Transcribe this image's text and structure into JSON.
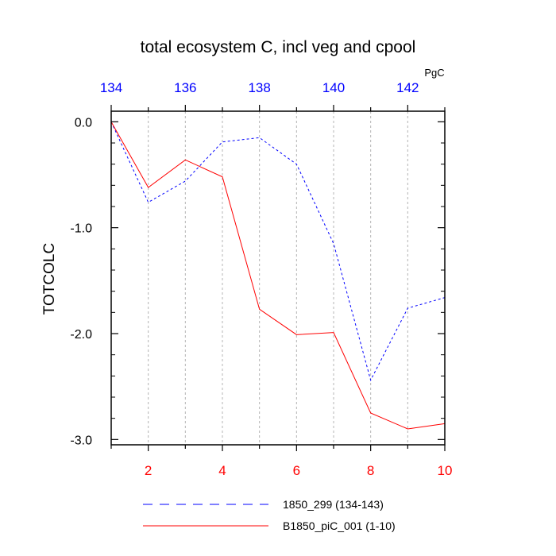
{
  "chart_data": {
    "type": "line",
    "title": "total ecosystem C, incl veg and cpool",
    "ylabel": "TOTCOLC",
    "units_label": "PgC",
    "ylim": [
      -3.05,
      0.1
    ],
    "y_ticks": [
      0.0,
      -1.0,
      -2.0,
      -3.0
    ],
    "y_tick_labels": [
      "0.0",
      "-1.0",
      "-2.0",
      "-3.0"
    ],
    "x_bottom": {
      "range": [
        1,
        10
      ],
      "ticks": [
        2,
        4,
        6,
        8,
        10
      ],
      "tick_labels": [
        "2",
        "4",
        "6",
        "8",
        "10"
      ],
      "color": "#ff0000"
    },
    "x_top": {
      "range": [
        134,
        143
      ],
      "ticks": [
        134,
        136,
        138,
        140,
        142
      ],
      "tick_labels": [
        "134",
        "136",
        "138",
        "140",
        "142"
      ],
      "color": "#0000ff"
    },
    "grid_x": [
      2,
      3,
      4,
      5,
      6,
      7,
      8,
      9
    ],
    "series": [
      {
        "name": "1850_299 (134-143)",
        "axis": "top",
        "color": "#0000ff",
        "style": "dashed",
        "x": [
          134,
          135,
          136,
          137,
          138,
          139,
          140,
          141,
          142,
          143
        ],
        "values": [
          0.0,
          -0.76,
          -0.56,
          -0.19,
          -0.15,
          -0.4,
          -1.15,
          -2.44,
          -1.76,
          -1.66
        ]
      },
      {
        "name": "B1850_piC_001 (1-10)",
        "axis": "bottom",
        "color": "#ff0000",
        "style": "solid",
        "x": [
          1,
          2,
          3,
          4,
          5,
          6,
          7,
          8,
          9,
          10
        ],
        "values": [
          0.0,
          -0.62,
          -0.36,
          -0.52,
          -1.77,
          -2.01,
          -1.99,
          -2.75,
          -2.9,
          -2.85
        ]
      }
    ]
  }
}
